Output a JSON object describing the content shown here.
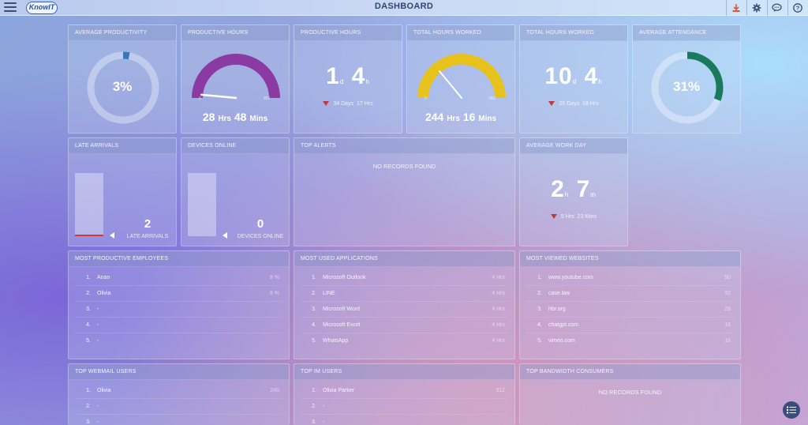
{
  "header": {
    "title": "DASHBOARD",
    "logo_text": "KnowIT",
    "menu_icon": "hamburger-icon",
    "buttons": [
      {
        "name": "download",
        "icon": "download-icon",
        "color": "#e0533c"
      },
      {
        "name": "settings",
        "icon": "gear-icon",
        "color": "#3b4e7a"
      },
      {
        "name": "chat",
        "icon": "chat-icon",
        "color": "#3b4e7a"
      },
      {
        "name": "help",
        "icon": "help-icon",
        "color": "#3b4e7a"
      }
    ]
  },
  "colors": {
    "productivity_ring": "#3a77b8",
    "gauge_hours": "#8b3aa3",
    "gauge_total": "#e8c21c",
    "attendance_ring": "#1a7a5e",
    "down_arrow": "#c0393b",
    "late_line": "#d23a3a"
  },
  "cards": {
    "avg_productivity": {
      "title": "AVERAGE PRODUCTIVITY",
      "value": "3%",
      "percent": 3
    },
    "productive_hours_gauge": {
      "title": "PRODUCTIVE HOURS",
      "min": "0",
      "max": "862",
      "hours": "28",
      "hrs_label": "Hrs",
      "mins": "48",
      "mins_label": "Mins",
      "needle_fraction": 0.03
    },
    "productive_hours_days": {
      "title": "PRODUCTIVE HOURS",
      "days": "1",
      "d_unit": "d",
      "hours": "4",
      "h_unit": "h",
      "trend_days": "34 Days",
      "trend_hours": "17 Hrs"
    },
    "total_hours_gauge": {
      "title": "TOTAL HOURS WORKED",
      "min": "0",
      "max": "862",
      "hours": "244",
      "hrs_label": "Hrs",
      "mins": "16",
      "mins_label": "Mins",
      "needle_fraction": 0.28
    },
    "total_hours_days": {
      "title": "TOTAL HOURS WORKED",
      "days": "10",
      "d_unit": "d",
      "hours": "4",
      "h_unit": "h",
      "trend_days": "25 Days",
      "trend_hours": "18 Hrs"
    },
    "avg_attendance": {
      "title": "AVERAGE ATTENDANCE",
      "value": "31%",
      "percent": 31
    },
    "late_arrivals": {
      "title": "LATE ARRIVALS",
      "value": "2",
      "label": "LATE ARRIVALS"
    },
    "devices_online": {
      "title": "DEVICES ONLINE",
      "value": "0",
      "label": "DEVICES ONLINE"
    },
    "top_alerts": {
      "title": "TOP ALERTS",
      "empty": "NO RECORDS FOUND"
    },
    "avg_work_day": {
      "title": "AVERAGE WORK DAY",
      "hours": "2",
      "h_unit": "h",
      "mins": "7",
      "m_unit": "m",
      "trend_hours": "5 Hrs",
      "trend_mins": "23 Mins"
    },
    "most_productive": {
      "title": "MOST PRODUCTIVE EMPLOYEES",
      "rows": [
        {
          "n": "1.",
          "name": "Anan",
          "value": "8 %"
        },
        {
          "n": "2.",
          "name": "Olivia",
          "value": "8 %"
        },
        {
          "n": "3.",
          "name": "-",
          "value": ""
        },
        {
          "n": "4.",
          "name": "-",
          "value": ""
        },
        {
          "n": "5.",
          "name": "-",
          "value": ""
        }
      ]
    },
    "most_used_apps": {
      "title": "MOST USED APPLICATIONS",
      "rows": [
        {
          "n": "1.",
          "name": "Microsoft Outlook",
          "value": "4 Hrs"
        },
        {
          "n": "2.",
          "name": "LINE",
          "value": "4 Hrs"
        },
        {
          "n": "3.",
          "name": "Microsoft Word",
          "value": "4 Hrs"
        },
        {
          "n": "4.",
          "name": "Microsoft Excel",
          "value": "4 Hrs"
        },
        {
          "n": "5.",
          "name": "WhatsApp",
          "value": "4 Hrs"
        }
      ]
    },
    "most_viewed_sites": {
      "title": "MOST VIEWED WEBSITES",
      "rows": [
        {
          "n": "1.",
          "name": "www.youtube.com",
          "value": "50"
        },
        {
          "n": "2.",
          "name": "case.law",
          "value": "32"
        },
        {
          "n": "3.",
          "name": "hbr.org",
          "value": "28"
        },
        {
          "n": "4.",
          "name": "chatgpt.com",
          "value": "16"
        },
        {
          "n": "5.",
          "name": "vimeo.com",
          "value": "16"
        }
      ]
    },
    "top_webmail": {
      "title": "TOP WEBMAIL USERS",
      "rows": [
        {
          "n": "1.",
          "name": "Olivia",
          "value": "240"
        },
        {
          "n": "2.",
          "name": "-",
          "value": ""
        },
        {
          "n": "3.",
          "name": "-",
          "value": ""
        }
      ]
    },
    "top_im": {
      "title": "TOP IM USERS",
      "rows": [
        {
          "n": "1.",
          "name": "Olivia Parker",
          "value": "312"
        },
        {
          "n": "2.",
          "name": "-",
          "value": ""
        },
        {
          "n": "3.",
          "name": "-",
          "value": ""
        }
      ]
    },
    "top_bandwidth": {
      "title": "TOP BANDWIDTH CONSUMERS",
      "empty": "NO RECORDS FOUND"
    }
  },
  "float_button": {
    "icon": "list-icon"
  }
}
